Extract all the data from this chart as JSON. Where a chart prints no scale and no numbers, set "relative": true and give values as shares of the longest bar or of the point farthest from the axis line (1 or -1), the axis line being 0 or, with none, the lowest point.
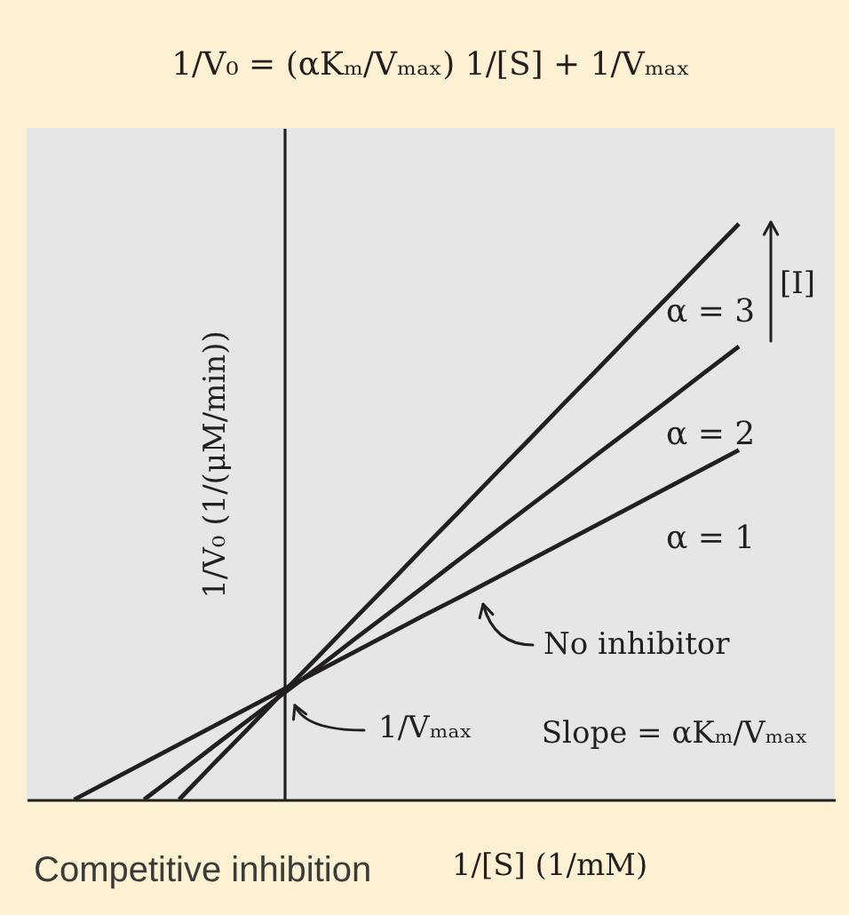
{
  "chart_data": {
    "type": "line",
    "title": "1/V₀ = (αKₘ/Vₘₐₓ) 1/[S] + 1/Vₘₐₓ",
    "xlabel": "1/[S] (1/mM)",
    "ylabel": "1/V₀ (1/(μM/min))",
    "relative": true,
    "tick_labels": false,
    "categories": [
      null,
      null,
      null,
      null,
      null,
      null,
      null,
      null,
      null,
      null,
      null,
      null,
      null,
      null,
      null,
      null,
      null,
      null,
      null,
      null
    ],
    "series": [
      {
        "name": "α = 1",
        "color": "#231f20",
        "values": [
          0,
          0.032,
          0.064,
          0.096,
          0.128,
          0.16,
          0.192,
          0.224,
          0.256,
          0.288,
          0.32,
          0.351,
          0.383,
          0.415,
          0.447,
          0.479,
          0.511,
          0.543,
          0.575,
          0.607
        ]
      },
      {
        "name": "α = 2",
        "color": "#231f20",
        "values": [
          null,
          null,
          0,
          0.046,
          0.093,
          0.139,
          0.185,
          0.231,
          0.278,
          0.324,
          0.37,
          0.417,
          0.463,
          0.509,
          0.555,
          0.602,
          0.648,
          0.694,
          0.741,
          0.787
        ]
      },
      {
        "name": "α = 3",
        "color": "#231f20",
        "values": [
          null,
          null,
          null,
          0,
          0.063,
          0.125,
          0.188,
          0.25,
          0.313,
          0.375,
          0.438,
          0.5,
          0.563,
          0.625,
          0.688,
          0.75,
          0.813,
          0.875,
          0.938,
          1
        ]
      }
    ],
    "annotations": [
      "No inhibitor",
      "1/Vₘₐₓ",
      "Slope = αKₘ/Vₘₐₓ",
      "[I]",
      "Competitive inhibition"
    ]
  }
}
